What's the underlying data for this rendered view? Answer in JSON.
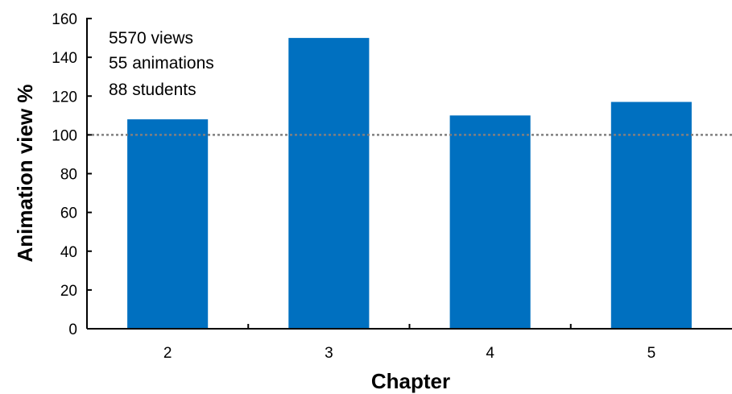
{
  "chart_data": {
    "type": "bar",
    "categories": [
      "2",
      "3",
      "4",
      "5"
    ],
    "values": [
      108,
      150,
      110,
      117
    ],
    "title": "",
    "xlabel": "Chapter",
    "ylabel": "Animation view %",
    "ylim": [
      0,
      160
    ],
    "yticks": [
      0,
      20,
      40,
      60,
      80,
      100,
      120,
      140,
      160
    ],
    "reference_line": 100,
    "annotations": [
      "5570 views",
      "55 animations",
      "88 students"
    ],
    "grid": false,
    "legend": "none",
    "colors": {
      "bar": "#0070C0",
      "reference_line": "#808080",
      "axis": "#000000"
    }
  }
}
